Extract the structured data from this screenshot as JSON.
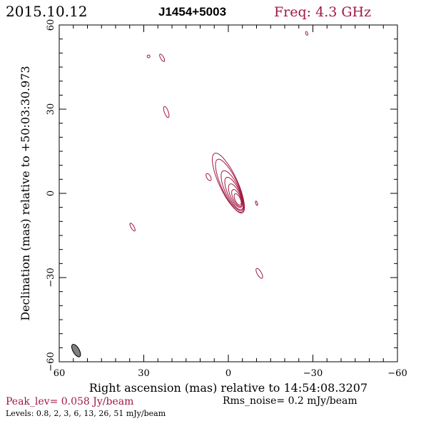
{
  "header": {
    "date": "2015.10.12",
    "source": "J1454+5003",
    "frequency": "Freq: 4.3 GHz"
  },
  "footer": {
    "peak": "Peak_lev=  0.058 Jy/beam",
    "rms": "Rms_noise=  0.2 mJy/beam",
    "levels": "Levels: 0.8,   2,   3,   6,  13,  26,  51 mJy/beam"
  },
  "colors": {
    "contour": "#a01840",
    "beam_fill": "#808080",
    "text_accent": "#a01840"
  },
  "chart_data": {
    "type": "contour",
    "xlabel": "Right ascension (mas) relative to 14:54:08.3207",
    "ylabel": "Declination (mas) relative to +50:03:30.973",
    "xlim": [
      60,
      -60
    ],
    "ylim": [
      -60,
      60
    ],
    "x_ticks": [
      60,
      30,
      0,
      -30,
      -60
    ],
    "y_ticks": [
      60,
      30,
      0,
      -30,
      -60
    ],
    "x_tick_labels": [
      "60",
      "30",
      "0",
      "−30",
      "−60"
    ],
    "y_tick_labels": [
      "60",
      "30",
      "0",
      "−30",
      "−60"
    ],
    "contour_levels_mJy": [
      0.8,
      2,
      3,
      6,
      13,
      26,
      51
    ],
    "peak_Jy_per_beam": 0.058,
    "rms_mJy_per_beam": 0.2,
    "beam": {
      "x": 54,
      "y": -56,
      "major": 5,
      "minor": 2.2,
      "pa_deg": -30
    },
    "main_source": {
      "core_x": -2.5,
      "core_y": -1.5,
      "pa_deg": -25,
      "contours": [
        {
          "cx": 2.5,
          "cy": 6.5,
          "major": 11.5,
          "minor": 3.2
        },
        {
          "cx": 1.8,
          "cy": 5.0,
          "major": 10.5,
          "minor": 2.9
        },
        {
          "cx": 0.8,
          "cy": 3.0,
          "major": 7.8,
          "minor": 2.5
        },
        {
          "cx": 0.0,
          "cy": 1.8,
          "major": 6.3,
          "minor": 2.1
        },
        {
          "cx": -0.8,
          "cy": 0.8,
          "major": 4.6,
          "minor": 1.7
        },
        {
          "cx": -1.5,
          "cy": -0.2,
          "major": 3.3,
          "minor": 1.3
        },
        {
          "cx": -2.0,
          "cy": -0.8,
          "major": 2.2,
          "minor": 0.95
        }
      ]
    },
    "noise_islands": [
      {
        "x": 28.3,
        "y": 48.8,
        "rx": 0.5,
        "ry": 0.5,
        "pa_deg": 0
      },
      {
        "x": 23.5,
        "y": 48.3,
        "rx": 0.55,
        "ry": 1.5,
        "pa_deg": -30
      },
      {
        "x": -27.8,
        "y": 57.0,
        "rx": 0.35,
        "ry": 0.7,
        "pa_deg": -20
      },
      {
        "x": 22.0,
        "y": 29.0,
        "rx": 0.7,
        "ry": 2.1,
        "pa_deg": -20
      },
      {
        "x": 7.0,
        "y": 5.8,
        "rx": 0.7,
        "ry": 1.4,
        "pa_deg": -30
      },
      {
        "x": -10.0,
        "y": -3.5,
        "rx": 0.3,
        "ry": 0.8,
        "pa_deg": -20
      },
      {
        "x": 34.0,
        "y": -12.0,
        "rx": 0.55,
        "ry": 1.6,
        "pa_deg": -30
      },
      {
        "x": -11.0,
        "y": -28.5,
        "rx": 0.75,
        "ry": 2.0,
        "pa_deg": -30
      }
    ]
  }
}
